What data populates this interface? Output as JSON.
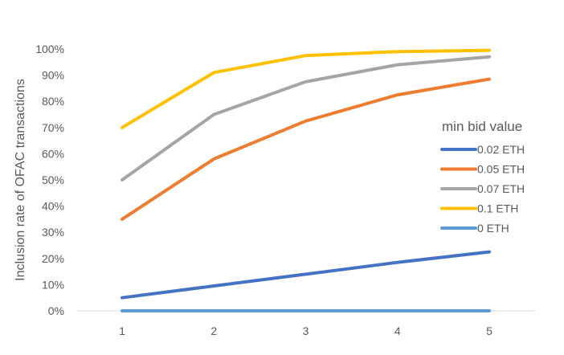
{
  "chart_data": {
    "type": "line",
    "title": "",
    "xlabel": "",
    "ylabel": "Inclusion rate of OFAC transactions",
    "categories": [
      "1",
      "2",
      "3",
      "4",
      "5"
    ],
    "ylim": [
      0,
      100
    ],
    "yticks": [
      "0%",
      "10%",
      "20%",
      "30%",
      "40%",
      "50%",
      "60%",
      "70%",
      "80%",
      "90%",
      "100%"
    ],
    "grid": false,
    "legend_title": "min bid value",
    "legend_position": "right",
    "series": [
      {
        "name": "0.02 ETH",
        "color": "#4472C4",
        "values": [
          5,
          9.5,
          14,
          18.5,
          22.5
        ]
      },
      {
        "name": "0.05 ETH",
        "color": "#ED7D31",
        "values": [
          35,
          58,
          72.5,
          82.5,
          88.5
        ]
      },
      {
        "name": "0.07 ETH",
        "color": "#A5A5A5",
        "values": [
          50,
          75,
          87.5,
          94,
          97
        ]
      },
      {
        "name": "0.1 ETH",
        "color": "#FFC000",
        "values": [
          70,
          91,
          97.5,
          99,
          99.5
        ]
      },
      {
        "name": "0 ETH",
        "color": "#5B9BD5",
        "values": [
          0,
          0,
          0,
          0,
          0
        ]
      }
    ]
  }
}
